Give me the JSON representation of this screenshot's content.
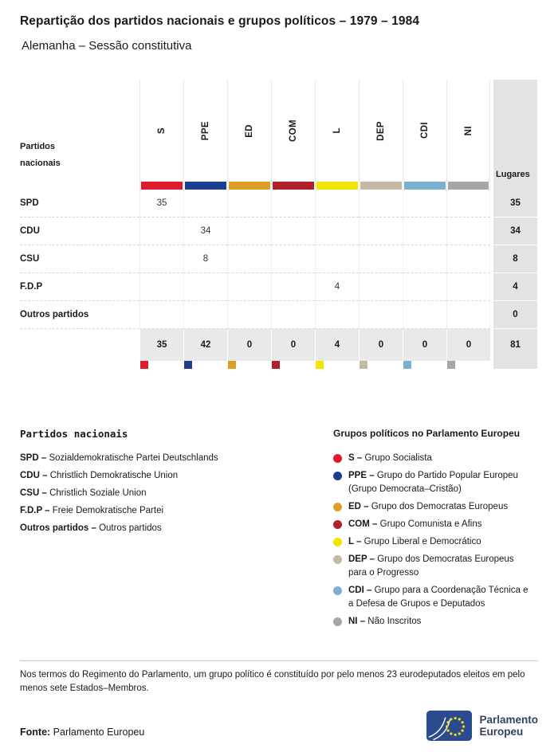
{
  "page": {
    "title": "Repartição dos partidos nacionais e grupos políticos – 1979 – 1984",
    "subtitle": "Alemanha – Sessão constitutiva"
  },
  "chart_data": {
    "type": "table",
    "title": "Repartição dos partidos nacionais e grupos políticos – 1979 – 1984",
    "subtitle": "Alemanha – Sessão constitutiva",
    "first_col_header": "Partidos nacionais",
    "seats_header": "Lugares",
    "groups": [
      {
        "code": "S",
        "color": "#e01b2c"
      },
      {
        "code": "PPE",
        "color": "#1d3e8f"
      },
      {
        "code": "ED",
        "color": "#dda024"
      },
      {
        "code": "COM",
        "color": "#b02128"
      },
      {
        "code": "L",
        "color": "#f2e500"
      },
      {
        "code": "DEP",
        "color": "#c3b9a5"
      },
      {
        "code": "CDI",
        "color": "#79b1cf"
      },
      {
        "code": "NI",
        "color": "#a6a6a6"
      }
    ],
    "rows": [
      {
        "party": "SPD",
        "values": [
          "35",
          "",
          "",
          "",
          "",
          "",
          "",
          ""
        ],
        "seats": "35"
      },
      {
        "party": "CDU",
        "values": [
          "",
          "34",
          "",
          "",
          "",
          "",
          "",
          ""
        ],
        "seats": "34"
      },
      {
        "party": "CSU",
        "values": [
          "",
          "8",
          "",
          "",
          "",
          "",
          "",
          ""
        ],
        "seats": "8"
      },
      {
        "party": "F.D.P",
        "values": [
          "",
          "",
          "",
          "",
          "4",
          "",
          "",
          ""
        ],
        "seats": "4"
      },
      {
        "party": "Outros partidos",
        "values": [
          "",
          "",
          "",
          "",
          "",
          "",
          "",
          ""
        ],
        "seats": "0"
      }
    ],
    "totals": {
      "values": [
        "35",
        "42",
        "0",
        "0",
        "4",
        "0",
        "0",
        "0"
      ],
      "seats": "81"
    }
  },
  "legend": {
    "parties_title": "Partidos nacionais",
    "parties": [
      {
        "abbr": "SPD –",
        "name": "Sozialdemokratische Partei Deutschlands"
      },
      {
        "abbr": "CDU –",
        "name": "Christlich Demokratische Union"
      },
      {
        "abbr": "CSU –",
        "name": "Christlich Soziale Union"
      },
      {
        "abbr": "F.D.P –",
        "name": "Freie Demokratische Partei"
      },
      {
        "abbr": "Outros partidos –",
        "name": "Outros partidos"
      }
    ],
    "groups_title": "Grupos políticos no Parlamento Europeu",
    "groups": [
      {
        "abbr": "S –",
        "name": "Grupo Socialista",
        "color": "#e01b2c"
      },
      {
        "abbr": "PPE –",
        "name": "Grupo do Partido Popular Europeu (Grupo Democrata–Cristão)",
        "color": "#1d3e8f"
      },
      {
        "abbr": "ED –",
        "name": "Grupo dos Democratas Europeus",
        "color": "#dda024"
      },
      {
        "abbr": "COM –",
        "name": "Grupo Comunista e Afins",
        "color": "#b02128"
      },
      {
        "abbr": "L –",
        "name": "Grupo Liberal e Democrático",
        "color": "#f2e500"
      },
      {
        "abbr": "DEP –",
        "name": "Grupo dos Democratas Europeus para o Progresso",
        "color": "#c3b9a5"
      },
      {
        "abbr": "CDI –",
        "name": "Grupo para a Coordenação Técnica e a Defesa de Grupos e Deputados",
        "color": "#79b1cf"
      },
      {
        "abbr": "NI –",
        "name": "Não Inscritos",
        "color": "#a6a6a6"
      }
    ]
  },
  "footnote": "Nos termos do Regimento do Parlamento, um grupo político é constituído por pelo menos 23 eurodeputados eleitos em pelo menos sete Estados–Membros.",
  "source": {
    "label": "Fonte:",
    "value": "Parlamento Europeu"
  },
  "logo": {
    "line1": "Parlamento",
    "line2": "Europeu"
  }
}
